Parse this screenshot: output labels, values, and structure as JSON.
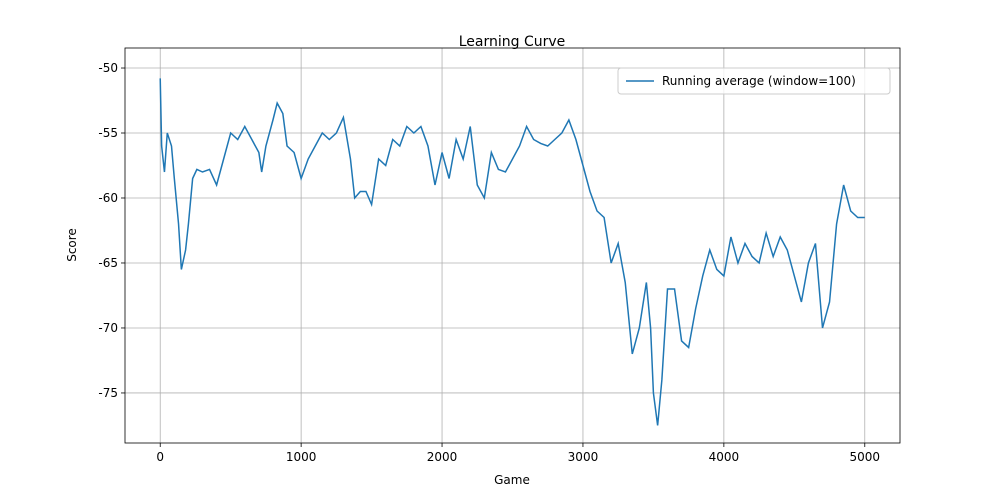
{
  "chart_data": {
    "type": "line",
    "title": "Learning Curve",
    "x_label": "Game",
    "y_label": "Score",
    "grid": true,
    "legend": "upper right",
    "xlim": [
      -250,
      5250
    ],
    "ylim": [
      -78.85,
      -48.46
    ],
    "xticks": [
      0,
      1000,
      2000,
      3000,
      4000,
      5000
    ],
    "yticks": [
      -50,
      -55,
      -60,
      -65,
      -70,
      -75
    ],
    "series": [
      {
        "name": "Running average (window=100)",
        "color": "#1f77b4",
        "x": [
          0,
          10,
          30,
          50,
          80,
          100,
          130,
          150,
          180,
          200,
          230,
          260,
          300,
          350,
          400,
          450,
          500,
          550,
          600,
          650,
          700,
          720,
          750,
          800,
          830,
          870,
          900,
          950,
          1000,
          1050,
          1100,
          1150,
          1200,
          1250,
          1300,
          1350,
          1380,
          1420,
          1460,
          1500,
          1550,
          1600,
          1650,
          1700,
          1750,
          1800,
          1850,
          1900,
          1950,
          2000,
          2050,
          2100,
          2150,
          2200,
          2250,
          2300,
          2350,
          2400,
          2450,
          2500,
          2550,
          2600,
          2650,
          2700,
          2750,
          2800,
          2850,
          2900,
          2950,
          3000,
          3050,
          3100,
          3150,
          3200,
          3250,
          3300,
          3350,
          3400,
          3450,
          3480,
          3500,
          3530,
          3560,
          3600,
          3650,
          3700,
          3750,
          3800,
          3850,
          3900,
          3950,
          4000,
          4050,
          4100,
          4150,
          4200,
          4250,
          4300,
          4350,
          4400,
          4450,
          4500,
          4550,
          4600,
          4650,
          4700,
          4750,
          4800,
          4850,
          4900,
          4950,
          5000
        ],
        "values": [
          -50.8,
          -56,
          -58,
          -55,
          -56,
          -58.5,
          -62,
          -65.5,
          -64,
          -62,
          -58.5,
          -57.8,
          -58,
          -57.8,
          -59,
          -57,
          -55,
          -55.5,
          -54.5,
          -55.5,
          -56.5,
          -58,
          -56,
          -54,
          -52.7,
          -53.5,
          -56,
          -56.5,
          -58.5,
          -57,
          -56,
          -55,
          -55.5,
          -55,
          -53.8,
          -57,
          -60,
          -59.5,
          -59.5,
          -60.5,
          -57,
          -57.5,
          -55.5,
          -56,
          -54.5,
          -55,
          -54.5,
          -56,
          -59,
          -56.5,
          -58.5,
          -55.5,
          -57,
          -54.5,
          -59,
          -60,
          -56.5,
          -57.8,
          -58,
          -57,
          -56,
          -54.5,
          -55.5,
          -55.8,
          -56,
          -55.5,
          -55,
          -54,
          -55.5,
          -57.5,
          -59.5,
          -61,
          -61.5,
          -65,
          -63.5,
          -66.5,
          -72,
          -70,
          -66.5,
          -70,
          -75,
          -77.5,
          -74,
          -67,
          -67,
          -71,
          -71.5,
          -68.5,
          -66,
          -64,
          -65.5,
          -66,
          -63,
          -65,
          -63.5,
          -64.5,
          -65,
          -62.7,
          -64.5,
          -63,
          -64,
          -66,
          -68,
          -65,
          -63.5,
          -70,
          -68,
          -62,
          -59,
          -61,
          -61.5,
          -61.5
        ]
      }
    ]
  }
}
